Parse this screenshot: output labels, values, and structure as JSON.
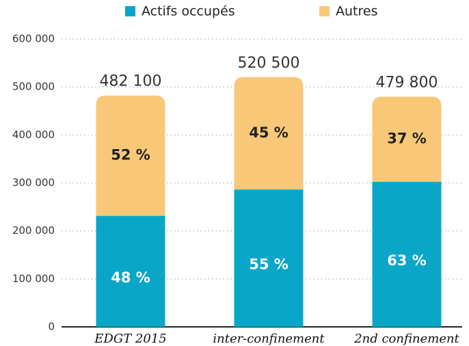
{
  "chart_data": {
    "type": "stacked_bar",
    "categories": [
      "EDGT 2015",
      "inter-confinement",
      "2nd confinement"
    ],
    "series": [
      {
        "name": "Actifs occupés",
        "color": "#0aa6c8",
        "values": [
          231400,
          286300,
          302300
        ],
        "shares": [
          48,
          55,
          63
        ],
        "share_labels": [
          "48 %",
          "55 %",
          "63 %"
        ]
      },
      {
        "name": "Autres",
        "color": "#f8c878",
        "values": [
          250700,
          234200,
          177500
        ],
        "shares": [
          52,
          45,
          37
        ],
        "share_labels": [
          "52 %",
          "45 %",
          "37 %"
        ]
      }
    ],
    "totals": [
      482100,
      520500,
      479800
    ],
    "total_labels": [
      "482 100",
      "520 500",
      "479 800"
    ],
    "ylim": [
      0,
      600000
    ],
    "yticks": [
      0,
      {
        "value": 100000,
        "label": "100 000"
      },
      {
        "value": 200000,
        "label": "200 000"
      },
      {
        "value": 300000,
        "label": "300 000"
      },
      {
        "value": 400000,
        "label": "400 000"
      },
      {
        "value": 500000,
        "label": "500 000"
      },
      {
        "value": 600000,
        "label": "600 000"
      }
    ],
    "grid": true,
    "legend": "top"
  }
}
